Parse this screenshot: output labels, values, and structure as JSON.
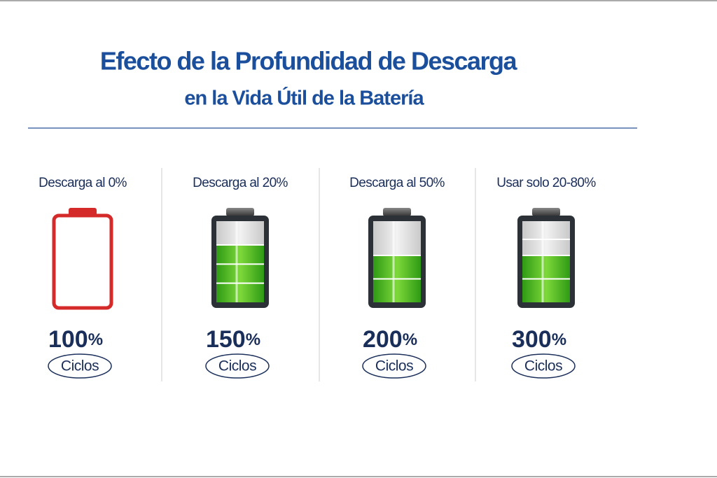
{
  "header": {
    "title_line1": "Efecto de la Profundidad de Descarga",
    "title_line2": "en la Vida Útil de la Batería"
  },
  "items": [
    {
      "label": "Descarga al 0%",
      "value": 100,
      "unit": "%",
      "caption": "Ciclos"
    },
    {
      "label": "Descarga al 20%",
      "value": 150,
      "unit": "%",
      "caption": "Ciclos"
    },
    {
      "label": "Descarga al 50%",
      "value": 200,
      "unit": "%",
      "caption": "Ciclos"
    },
    {
      "label": "Usar solo 20-80%",
      "value": 300,
      "unit": "%",
      "caption": "Ciclos"
    }
  ]
}
